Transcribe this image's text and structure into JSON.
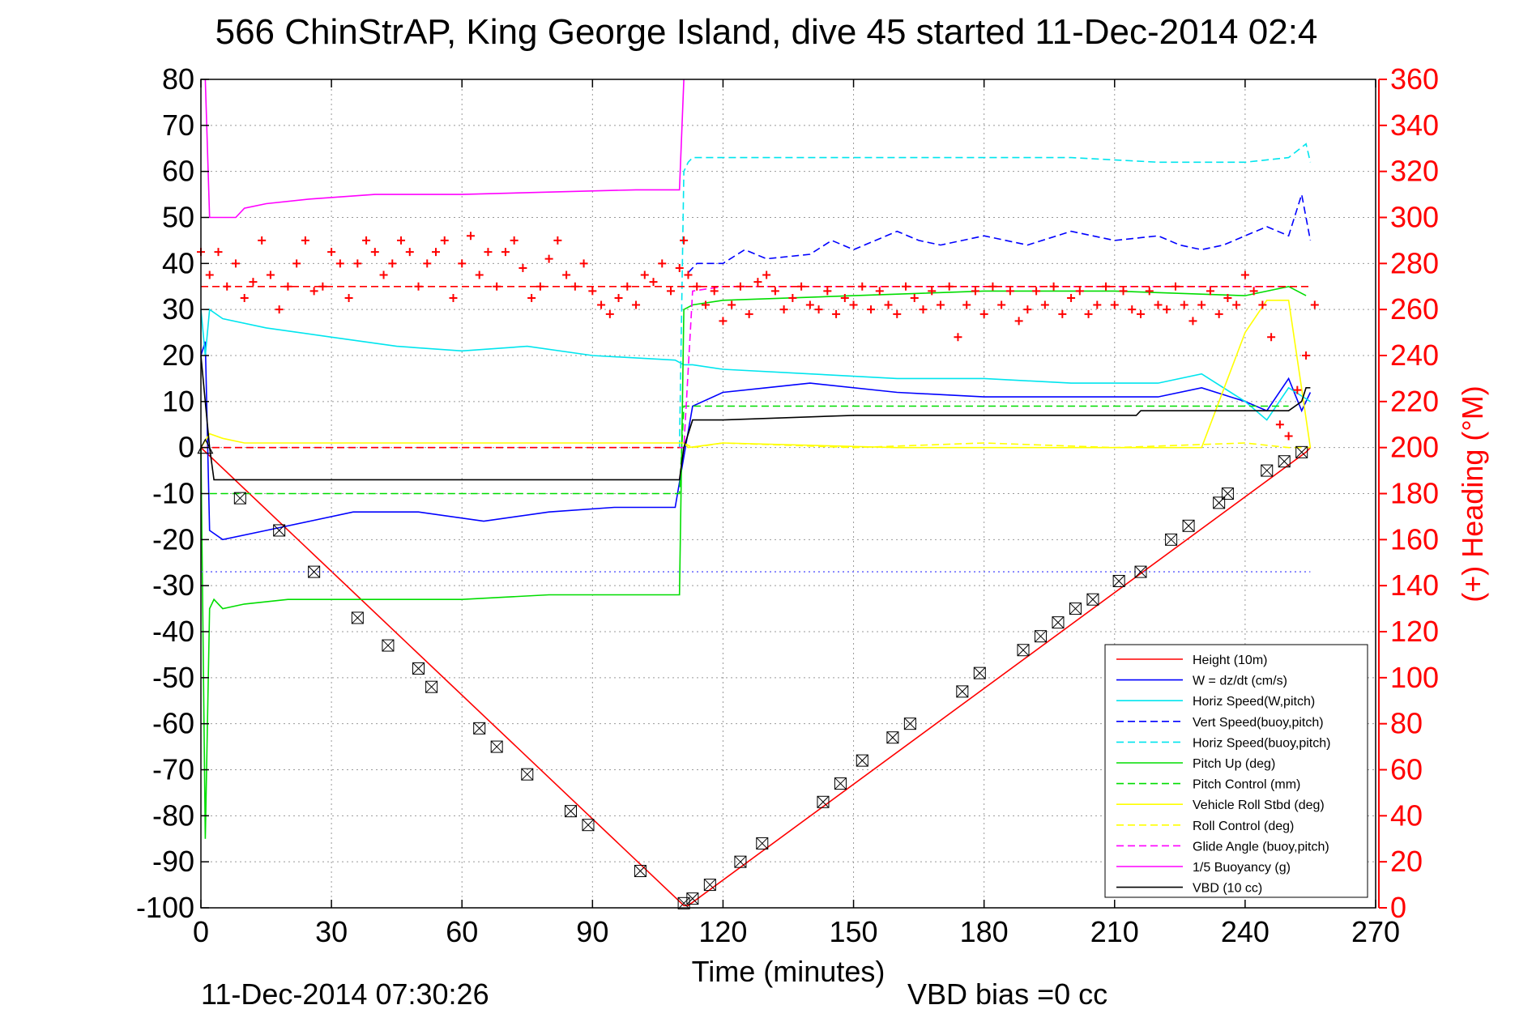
{
  "chart_data": {
    "type": "line",
    "title": "566 ChinStrAP, King George Island, dive 45 started 11-Dec-2014 02:4",
    "xlabel": "Time (minutes)",
    "y2label": "(+) Heading (°M)",
    "footer_left": "11-Dec-2014 07:30:26",
    "footer_right": "VBD bias =0 cc",
    "grid": true,
    "legend_position": "bottom-right",
    "xlim": [
      0,
      270
    ],
    "ylim": [
      -100,
      80
    ],
    "y2lim": [
      0,
      360
    ],
    "xticks": [
      "0",
      "30",
      "60",
      "90",
      "120",
      "150",
      "180",
      "210",
      "240",
      "270"
    ],
    "yticks": [
      "80",
      "70",
      "60",
      "50",
      "40",
      "30",
      "20",
      "10",
      "0",
      "-10",
      "-20",
      "-30",
      "-40",
      "-50",
      "-60",
      "-70",
      "-80",
      "-90",
      "-100"
    ],
    "y2ticks": [
      "360",
      "340",
      "320",
      "300",
      "280",
      "260",
      "240",
      "220",
      "200",
      "180",
      "160",
      "140",
      "120",
      "100",
      "80",
      "60",
      "40",
      "20",
      "0"
    ],
    "series": [
      {
        "name": "Height (10m)",
        "color": "#ff0000",
        "dash": "solid",
        "x": [
          0,
          111,
          112,
          254,
          255
        ],
        "y": [
          0,
          -99.5,
          -99.5,
          -1,
          0
        ]
      },
      {
        "name": "W = dz/dt (cm/s)",
        "color": "#0000ff",
        "dash": "solid",
        "x": [
          0,
          1,
          2,
          5,
          15,
          25,
          35,
          50,
          65,
          80,
          95,
          109,
          111,
          113,
          120,
          130,
          140,
          160,
          180,
          200,
          220,
          230,
          240,
          245,
          250,
          253,
          255
        ],
        "y": [
          20,
          23,
          -18,
          -20,
          -18,
          -16,
          -14,
          -14,
          -16,
          -14,
          -13,
          -13,
          -2,
          9,
          12,
          13,
          14,
          12,
          11,
          11,
          11,
          13,
          10,
          8,
          15,
          8,
          12
        ]
      },
      {
        "name": "Horiz Speed(W,pitch)",
        "color": "#00e5ee",
        "dash": "solid",
        "x": [
          0,
          1,
          2,
          5,
          15,
          30,
          45,
          60,
          75,
          90,
          109,
          111,
          113,
          120,
          140,
          160,
          180,
          200,
          220,
          230,
          240,
          245,
          250,
          255
        ],
        "y": [
          30,
          20,
          30,
          28,
          26,
          24,
          22,
          21,
          22,
          20,
          19,
          18,
          18,
          17,
          16,
          15,
          15,
          14,
          14,
          16,
          10,
          6,
          13,
          10
        ]
      },
      {
        "name": "Vert Speed(buoy,pitch)",
        "color": "#0000ff",
        "dash": "dashed",
        "x": [
          112,
          114,
          120,
          125,
          130,
          140,
          145,
          150,
          160,
          165,
          170,
          180,
          190,
          200,
          210,
          220,
          225,
          230,
          235,
          240,
          245,
          250,
          253,
          255
        ],
        "y": [
          38,
          40,
          40,
          43,
          41,
          42,
          45,
          43,
          47,
          45,
          44,
          46,
          44,
          47,
          45,
          46,
          44,
          43,
          44,
          46,
          48,
          46,
          55,
          45
        ]
      },
      {
        "name": "Horiz Speed(buoy,pitch)",
        "color": "#00e5ee",
        "dash": "dashed",
        "x": [
          110,
          111,
          112,
          113,
          120,
          150,
          180,
          200,
          220,
          240,
          250,
          254,
          255
        ],
        "y": [
          0,
          60,
          62,
          63,
          63,
          63,
          63,
          63,
          62,
          62,
          63,
          66,
          62
        ]
      },
      {
        "name": "Pitch Up (deg)",
        "color": "#00dd00",
        "dash": "solid",
        "x": [
          0,
          1,
          2,
          3,
          5,
          10,
          20,
          40,
          60,
          80,
          100,
          109,
          110,
          111,
          113,
          120,
          150,
          180,
          210,
          240,
          250,
          254
        ],
        "y": [
          0,
          -85,
          -35,
          -33,
          -35,
          -34,
          -33,
          -33,
          -33,
          -32,
          -32,
          -32,
          -32,
          30,
          31,
          32,
          33,
          34,
          34,
          33,
          35,
          33
        ]
      },
      {
        "name": "Pitch Control (mm)",
        "color": "#00dd00",
        "dash": "dashed",
        "x": [
          2,
          109,
          110,
          111,
          250
        ],
        "y": [
          -10,
          -10,
          -10,
          9,
          9
        ]
      },
      {
        "name": "Vehicle Roll Stbd (deg)",
        "color": "#ffff00",
        "dash": "solid",
        "x": [
          0,
          2,
          5,
          10,
          50,
          100,
          110,
          111,
          112,
          120,
          160,
          200,
          230,
          240,
          245,
          250,
          255
        ],
        "y": [
          0,
          3,
          2,
          1,
          1,
          1,
          1,
          1,
          0,
          1,
          0,
          0,
          0,
          25,
          32,
          32,
          0
        ]
      },
      {
        "name": "Roll Control (deg)",
        "color": "#ffff00",
        "dash": "dashed",
        "x": [
          111,
          113,
          120,
          150,
          180,
          210,
          240,
          250,
          255
        ],
        "y": [
          1,
          0,
          1,
          0,
          1,
          0,
          1,
          0,
          0
        ]
      },
      {
        "name": "Glide Angle (buoy,pitch)",
        "color": "#ff00ff",
        "dash": "dashed",
        "x": [
          0,
          110,
          111,
          113,
          120,
          150,
          180,
          210,
          240,
          250
        ],
        "y": [
          0,
          0,
          0,
          34,
          35,
          35,
          35,
          35,
          35,
          35
        ]
      },
      {
        "name": "1/5 Buoyancy (g)",
        "color": "#ff00ff",
        "dash": "solid",
        "x": [
          1,
          2,
          3,
          8,
          10,
          15,
          25,
          40,
          60,
          80,
          100,
          110,
          111
        ],
        "y": [
          80,
          50,
          50,
          50,
          52,
          53,
          54,
          55,
          55,
          55.5,
          56,
          56,
          80
        ]
      },
      {
        "name": "VBD (10 cc)",
        "color": "#000000",
        "dash": "solid",
        "x": [
          0,
          2,
          3,
          110,
          111,
          113,
          120,
          150,
          200,
          215,
          216,
          240,
          250,
          253,
          254,
          255
        ],
        "y": [
          20,
          0,
          -7,
          -7,
          0,
          6,
          6,
          7,
          7,
          7,
          8,
          8,
          8,
          10,
          13,
          13
        ]
      },
      {
        "name": "",
        "color": "#7070ff",
        "dash": "dotted",
        "x": [
          0,
          255
        ],
        "y": [
          -27,
          -27
        ]
      },
      {
        "name": "",
        "color": "#ff0000",
        "dash": "dashed",
        "x": [
          0,
          255
        ],
        "y": [
          35,
          35
        ]
      },
      {
        "name": "",
        "color": "#ff0000",
        "dash": "dashed",
        "x": [
          0,
          110
        ],
        "y": [
          0,
          0
        ]
      }
    ],
    "heading_points": {
      "name": "(+) Heading",
      "color": "#ff0000",
      "x": [
        0,
        2,
        4,
        6,
        8,
        10,
        12,
        14,
        16,
        18,
        20,
        22,
        24,
        26,
        28,
        30,
        32,
        34,
        36,
        38,
        40,
        42,
        44,
        46,
        48,
        50,
        52,
        54,
        56,
        58,
        60,
        62,
        64,
        66,
        68,
        70,
        72,
        74,
        76,
        78,
        80,
        82,
        84,
        86,
        88,
        90,
        92,
        94,
        96,
        98,
        100,
        102,
        104,
        106,
        108,
        110,
        111,
        112,
        114,
        116,
        118,
        120,
        122,
        124,
        126,
        128,
        130,
        132,
        134,
        136,
        138,
        140,
        142,
        144,
        146,
        148,
        150,
        152,
        154,
        156,
        158,
        160,
        162,
        164,
        166,
        168,
        170,
        172,
        174,
        176,
        178,
        180,
        182,
        184,
        186,
        188,
        190,
        192,
        194,
        196,
        198,
        200,
        202,
        204,
        206,
        208,
        210,
        212,
        214,
        216,
        218,
        220,
        222,
        224,
        226,
        228,
        230,
        232,
        234,
        236,
        238,
        240,
        242,
        244,
        246,
        248,
        250,
        252,
        254,
        256
      ],
      "y": [
        285,
        275,
        285,
        270,
        280,
        265,
        272,
        290,
        275,
        260,
        270,
        280,
        290,
        268,
        270,
        285,
        280,
        265,
        280,
        290,
        285,
        275,
        280,
        290,
        285,
        270,
        280,
        285,
        290,
        265,
        280,
        292,
        275,
        285,
        270,
        285,
        290,
        278,
        265,
        270,
        282,
        290,
        275,
        270,
        280,
        268,
        262,
        258,
        265,
        270,
        262,
        275,
        272,
        280,
        268,
        278,
        290,
        275,
        270,
        262,
        268,
        255,
        262,
        270,
        258,
        272,
        275,
        268,
        260,
        265,
        270,
        262,
        260,
        268,
        258,
        265,
        262,
        270,
        260,
        268,
        262,
        258,
        270,
        265,
        260,
        268,
        262,
        270,
        248,
        262,
        268,
        258,
        270,
        262,
        268,
        255,
        260,
        268,
        262,
        270,
        258,
        265,
        268,
        258,
        262,
        270,
        262,
        268,
        260,
        258,
        268,
        262,
        260,
        270,
        262,
        255,
        262,
        268,
        258,
        265,
        262,
        275,
        268,
        262,
        248,
        210,
        205,
        225,
        240,
        262
      ]
    },
    "depth_markers": {
      "x": [
        9,
        18,
        26,
        36,
        43,
        50,
        53,
        64,
        68,
        75,
        85,
        89,
        101,
        111,
        113,
        117,
        124,
        129,
        143,
        147,
        152,
        159,
        163,
        175,
        179,
        189,
        193,
        197,
        201,
        205,
        211,
        216,
        223,
        227,
        234,
        236,
        245,
        249,
        253
      ],
      "y": [
        -11,
        -18,
        -27,
        -37,
        -43,
        -48,
        -52,
        -61,
        -65,
        -71,
        -79,
        -82,
        -92,
        -99,
        -98,
        -95,
        -90,
        -86,
        -77,
        -73,
        -68,
        -63,
        -60,
        -53,
        -49,
        -44,
        -41,
        -38,
        -35,
        -33,
        -29,
        -27,
        -20,
        -17,
        -12,
        -10,
        -5,
        -3,
        -1
      ]
    }
  }
}
